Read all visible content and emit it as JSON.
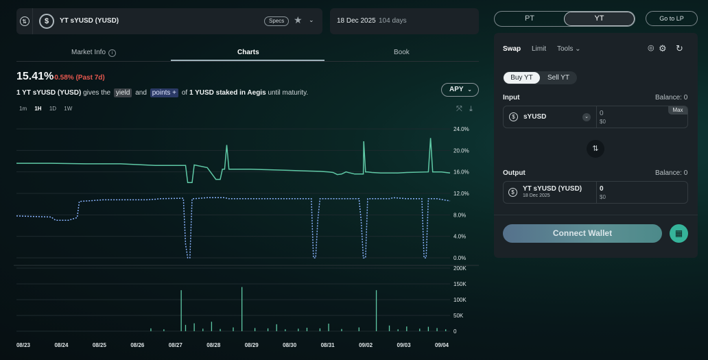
{
  "header": {
    "market_name": "YT sYUSD (YUSD)",
    "specs_label": "Specs",
    "maturity_date": "18 Dec 2025",
    "days_left": "104 days"
  },
  "tabs": [
    "Market Info",
    "Charts",
    "Book"
  ],
  "summary": {
    "apy": "15.41%",
    "change": "-0.58% (Past 7d)",
    "desc_prefix": "1 YT sYUSD (YUSD)",
    "desc_mid1": "gives the",
    "tag_yield": "yield",
    "desc_and": "and",
    "tag_points": "points +",
    "desc_of": "of",
    "desc_asset": "1 YUSD staked in Aegis",
    "desc_suffix": "until maturity."
  },
  "apy_selector": "APY",
  "ranges": [
    "1m",
    "1H",
    "1D",
    "1W"
  ],
  "chart_data": {
    "type": "line",
    "y_ticks": [
      "24.0%",
      "20.0%",
      "16.0%",
      "12.0%",
      "8.0%",
      "4.0%",
      "0.0%"
    ],
    "ylim": [
      0,
      24
    ],
    "vol_ticks": [
      "200K",
      "150K",
      "100K",
      "50K",
      "0"
    ],
    "vol_ylim": [
      0,
      200000
    ],
    "x_ticks": [
      "08/23",
      "08/24",
      "08/25",
      "08/26",
      "08/27",
      "08/28",
      "08/29",
      "08/30",
      "08/31",
      "09/02",
      "09/03",
      "09/04"
    ],
    "series": [
      {
        "color": "#5fc9a6",
        "style": "solid",
        "points": [
          [
            0,
            17.6
          ],
          [
            0.08,
            17.6
          ],
          [
            0.16,
            17.5
          ],
          [
            0.24,
            17.5
          ],
          [
            0.32,
            17.2
          ],
          [
            0.39,
            17.2
          ],
          [
            0.395,
            14.0
          ],
          [
            0.405,
            14.0
          ],
          [
            0.41,
            17.3
          ],
          [
            0.44,
            16.8
          ],
          [
            0.46,
            14.6
          ],
          [
            0.47,
            14.6
          ],
          [
            0.475,
            16.5
          ],
          [
            0.48,
            16.5
          ],
          [
            0.485,
            21.0
          ],
          [
            0.49,
            16.5
          ],
          [
            0.5,
            16.5
          ],
          [
            0.54,
            16.5
          ],
          [
            0.58,
            16.4
          ],
          [
            0.62,
            16.3
          ],
          [
            0.66,
            16.2
          ],
          [
            0.7,
            16.1
          ],
          [
            0.72,
            16.0
          ],
          [
            0.73,
            15.9
          ],
          [
            0.74,
            15.5
          ],
          [
            0.75,
            15.6
          ],
          [
            0.76,
            16.0
          ],
          [
            0.78,
            15.6
          ],
          [
            0.8,
            15.6
          ],
          [
            0.801,
            21.7
          ],
          [
            0.805,
            16.0
          ],
          [
            0.81,
            16.0
          ],
          [
            0.82,
            15.9
          ],
          [
            0.84,
            15.8
          ],
          [
            0.86,
            15.8
          ],
          [
            0.88,
            15.8
          ],
          [
            0.9,
            15.9
          ],
          [
            0.95,
            16.0
          ],
          [
            0.955,
            22.3
          ],
          [
            0.96,
            16.0
          ],
          [
            0.98,
            16.0
          ],
          [
            1,
            15.8
          ]
        ]
      },
      {
        "color": "#8ab4ff",
        "style": "dotted",
        "points": [
          [
            0,
            7.8
          ],
          [
            0.08,
            7.6
          ],
          [
            0.09,
            7.0
          ],
          [
            0.12,
            7.0
          ],
          [
            0.14,
            7.5
          ],
          [
            0.145,
            10.5
          ],
          [
            0.2,
            10.8
          ],
          [
            0.3,
            10.8
          ],
          [
            0.32,
            10.9
          ],
          [
            0.33,
            11.0
          ],
          [
            0.385,
            11.1
          ],
          [
            0.39,
            2.5
          ],
          [
            0.395,
            0
          ],
          [
            0.4,
            0
          ],
          [
            0.405,
            11.0
          ],
          [
            0.41,
            11.0
          ],
          [
            0.44,
            11.2
          ],
          [
            0.47,
            11.2
          ],
          [
            0.48,
            11.2
          ],
          [
            0.49,
            11.0
          ],
          [
            0.5,
            11.0
          ],
          [
            0.62,
            11.0
          ],
          [
            0.67,
            11.0
          ],
          [
            0.68,
            11.0
          ],
          [
            0.685,
            0
          ],
          [
            0.69,
            0
          ],
          [
            0.695,
            7.0
          ],
          [
            0.7,
            11.0
          ],
          [
            0.79,
            11.0
          ],
          [
            0.795,
            7.0
          ],
          [
            0.8,
            0
          ],
          [
            0.805,
            0
          ],
          [
            0.81,
            11.0
          ],
          [
            0.86,
            11.0
          ],
          [
            0.87,
            11.2
          ],
          [
            0.9,
            11.0
          ],
          [
            0.93,
            11.0
          ],
          [
            0.935,
            11.0
          ],
          [
            0.94,
            0
          ],
          [
            0.945,
            0
          ],
          [
            0.95,
            11.0
          ],
          [
            0.97,
            11.0
          ],
          [
            1,
            10.6
          ]
        ]
      }
    ],
    "volume": [
      [
        0.38,
        130000
      ],
      [
        0.52,
        140000
      ],
      [
        0.83,
        130000
      ],
      [
        0.41,
        25000
      ],
      [
        0.45,
        30000
      ],
      [
        0.39,
        20000
      ],
      [
        0.6,
        22000
      ],
      [
        0.72,
        24000
      ],
      [
        0.86,
        18000
      ],
      [
        0.9,
        15000
      ],
      [
        0.5,
        12000
      ],
      [
        0.55,
        10000
      ],
      [
        0.65,
        8000
      ],
      [
        0.7,
        9000
      ],
      [
        0.95,
        14000
      ],
      [
        0.97,
        10000
      ],
      [
        0.31,
        9000
      ],
      [
        0.34,
        6000
      ],
      [
        0.43,
        8000
      ],
      [
        0.47,
        7000
      ],
      [
        0.58,
        9000
      ],
      [
        0.62,
        6000
      ],
      [
        0.67,
        11000
      ],
      [
        0.75,
        7000
      ],
      [
        0.79,
        12000
      ],
      [
        0.88,
        6000
      ],
      [
        0.93,
        8000
      ],
      [
        0.99,
        6000
      ]
    ]
  },
  "swap_panel": {
    "toggle_pt": "PT",
    "toggle_yt": "YT",
    "go_to_lp": "Go to LP",
    "modes": [
      "Swap",
      "Limit",
      "Tools"
    ],
    "buy_label": "Buy YT",
    "sell_label": "Sell YT",
    "input_label": "Input",
    "input_balance": "Balance: 0",
    "input_token": "sYUSD",
    "input_amount": "0",
    "input_usd": "$0",
    "max_label": "Max",
    "output_label": "Output",
    "output_balance": "Balance: 0",
    "output_token": "YT sYUSD (YUSD)",
    "output_date": "18 Dec 2025",
    "output_amount": "0",
    "output_usd": "$0",
    "connect_label": "Connect Wallet"
  }
}
